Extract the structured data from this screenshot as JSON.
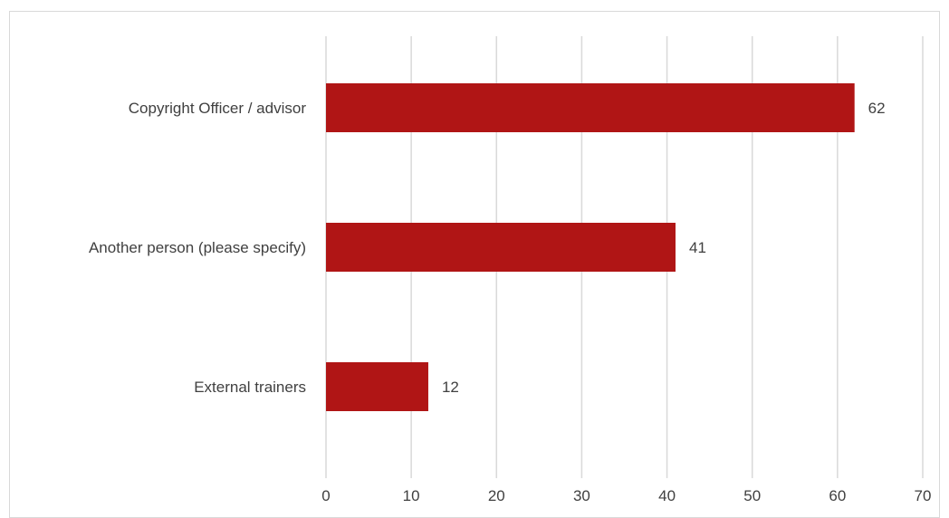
{
  "chart_data": {
    "type": "bar",
    "orientation": "horizontal",
    "categories": [
      "Copyright Officer / advisor",
      "Another person (please specify)",
      "External trainers"
    ],
    "values": [
      62,
      41,
      12
    ],
    "data_labels": [
      "62",
      "41",
      "12"
    ],
    "xlim": [
      0,
      70
    ],
    "x_ticks": [
      0,
      10,
      20,
      30,
      40,
      50,
      60,
      70
    ],
    "x_tick_labels": [
      "0",
      "10",
      "20",
      "30",
      "40",
      "50",
      "60",
      "70"
    ],
    "title": "",
    "xlabel": "",
    "ylabel": "",
    "grid": "vertical",
    "legend": "none",
    "bar_color": "#b01515",
    "grid_color": "#d9d9d9",
    "text_color": "#404040"
  }
}
